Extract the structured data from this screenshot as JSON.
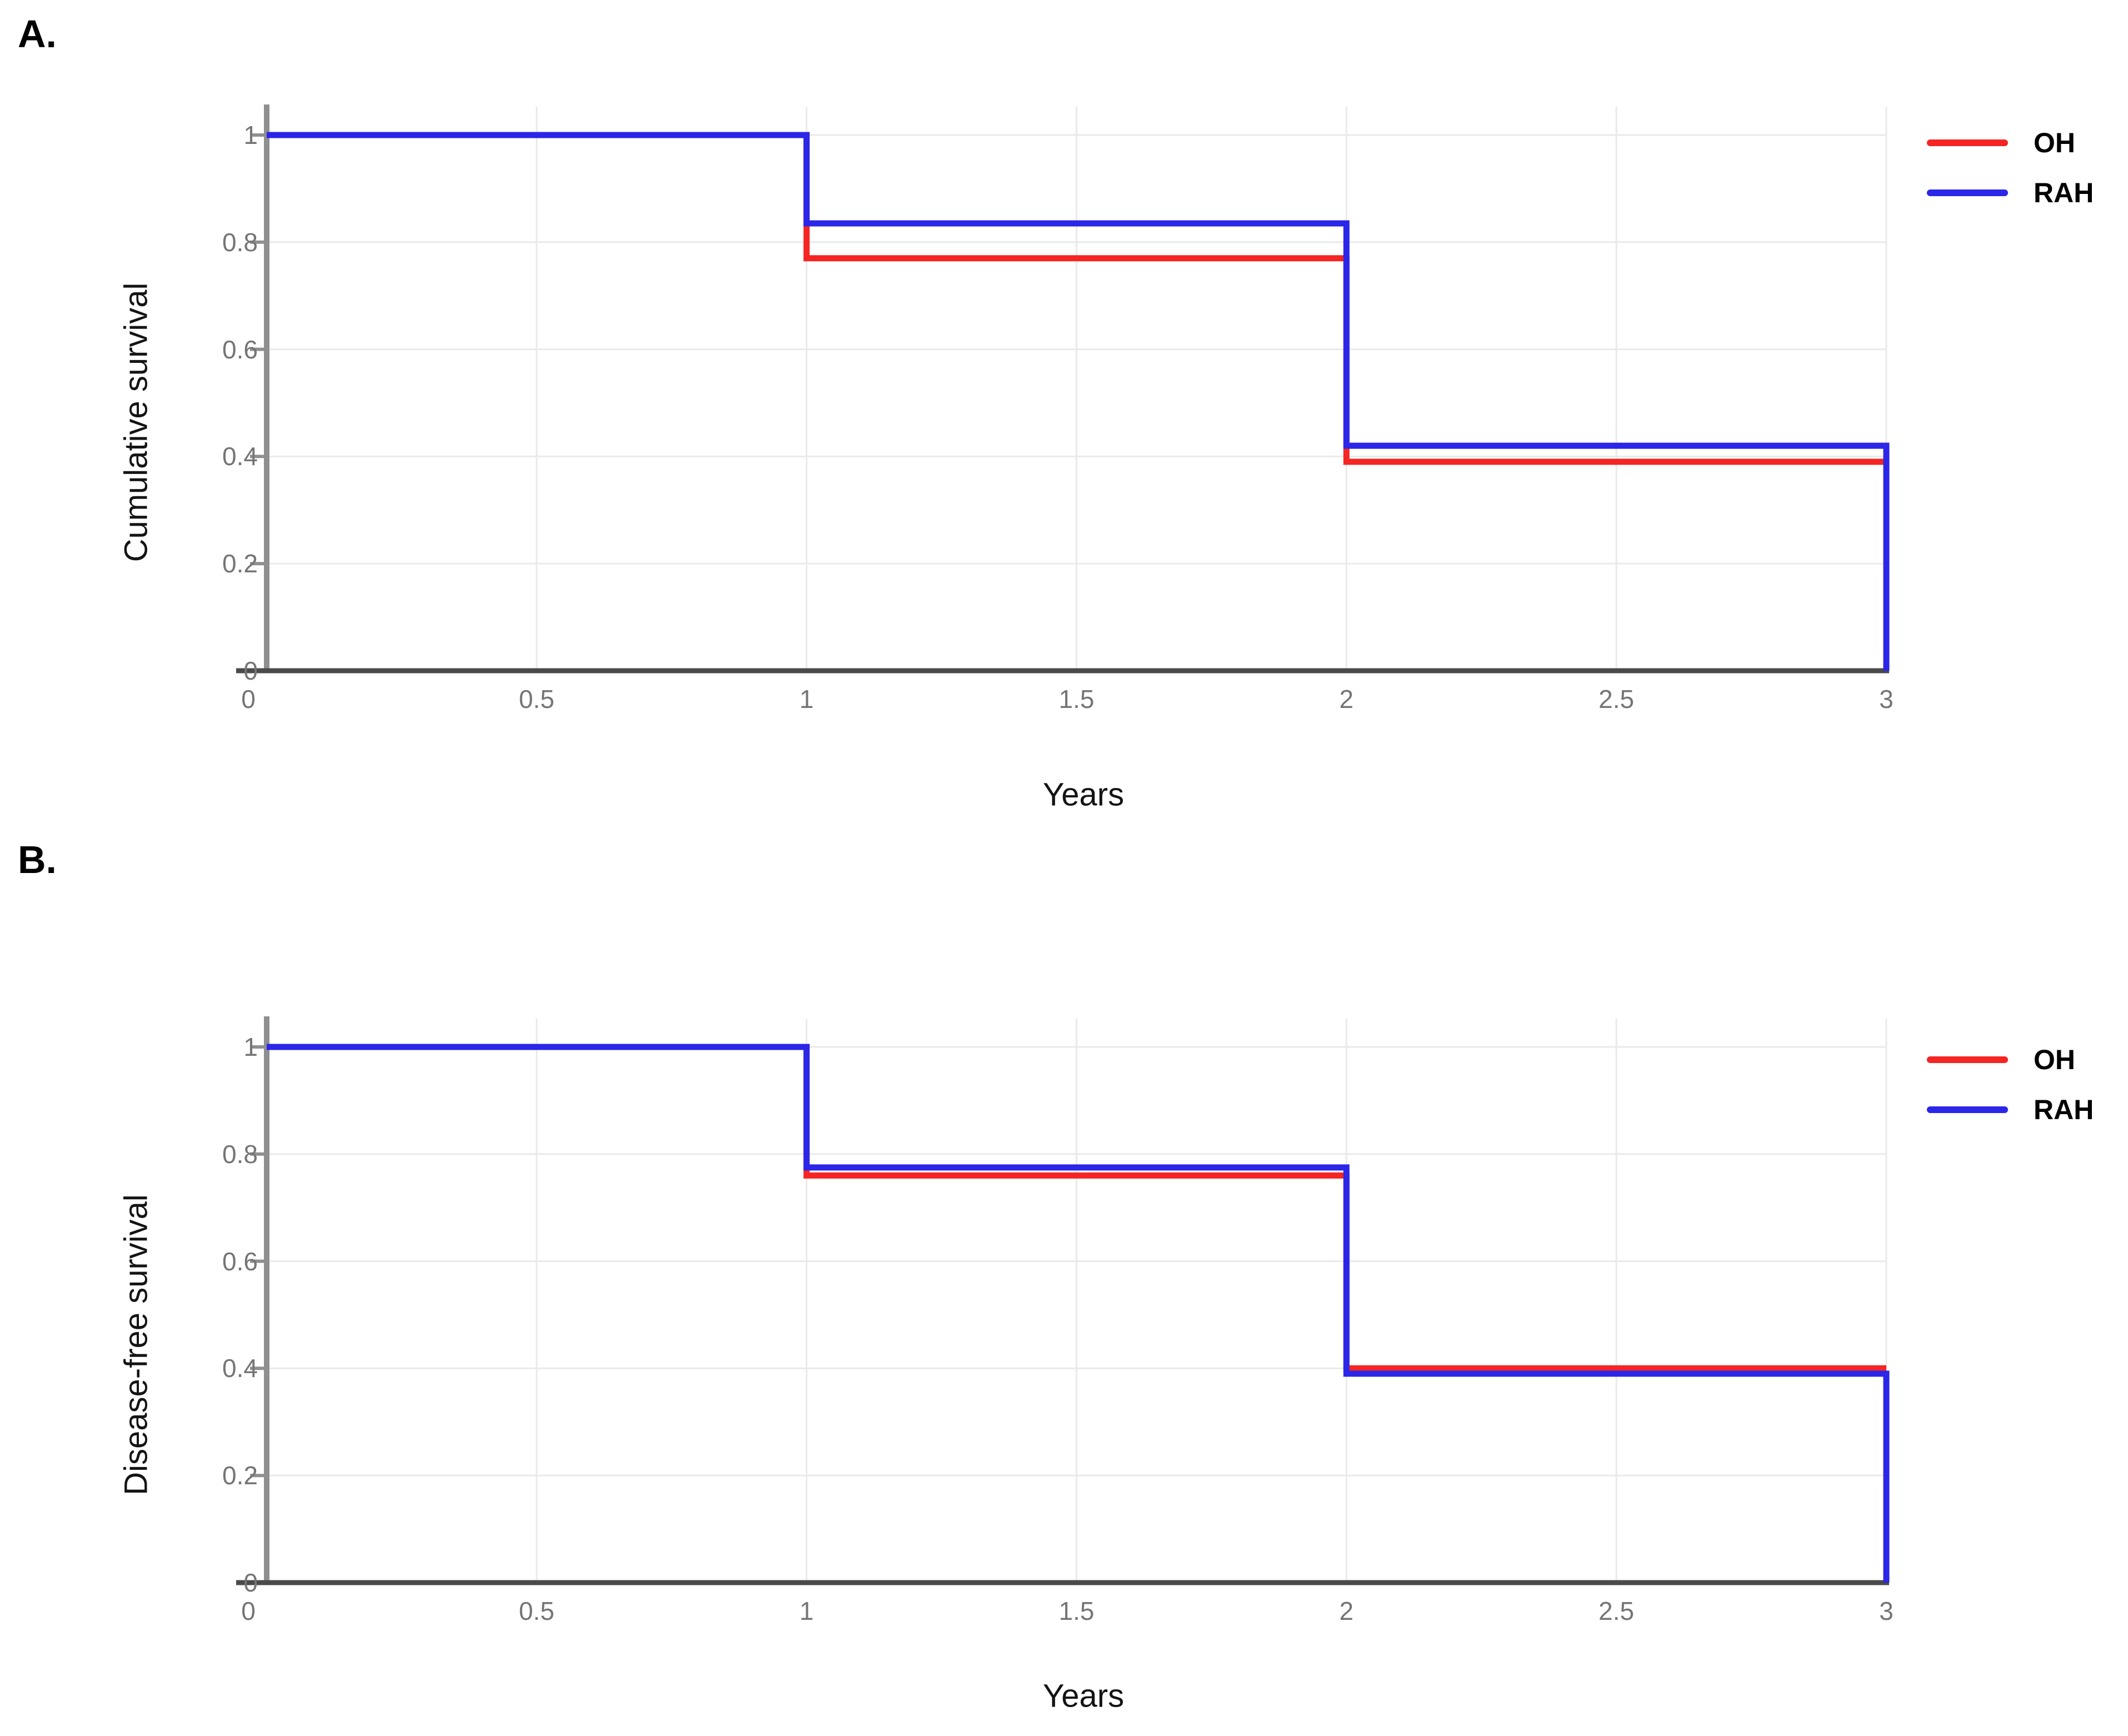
{
  "colors": {
    "oh": "#F42522",
    "rah": "#2B26E8",
    "grid": "#EAEAEA",
    "x_axis": "#4A4A4A",
    "y_axis": "#8F8F8F",
    "tick_text": "#757575",
    "title_text": "#141414"
  },
  "chart_data": [
    {
      "type": "line",
      "step": true,
      "panel_label": "A.",
      "title": "",
      "xlabel": "Years",
      "ylabel": "Cumulative survival",
      "xlim": [
        0,
        3
      ],
      "ylim": [
        0,
        1
      ],
      "xticks": [
        "0",
        "0.5",
        "1",
        "1.5",
        "2",
        "2.5",
        "3"
      ],
      "yticks": [
        "0",
        "0.2",
        "0.4",
        "0.6",
        "0.8",
        "1"
      ],
      "grid": true,
      "legend_position": "top-right",
      "legend_entries": [
        "OH",
        "RAH"
      ],
      "series": [
        {
          "name": "OH",
          "color": "#F42522",
          "x": [
            0,
            1,
            1,
            2,
            2,
            3
          ],
          "y": [
            1,
            1,
            0.77,
            0.77,
            0.39,
            0.39
          ]
        },
        {
          "name": "RAH",
          "color": "#2B26E8",
          "x": [
            0,
            1,
            1,
            2,
            2,
            3,
            3
          ],
          "y": [
            1,
            1,
            0.835,
            0.835,
            0.42,
            0.42,
            0
          ]
        }
      ]
    },
    {
      "type": "line",
      "step": true,
      "panel_label": "B.",
      "title": "",
      "xlabel": "Years",
      "ylabel": "Disease-free survival",
      "xlim": [
        0,
        3
      ],
      "ylim": [
        0,
        1
      ],
      "xticks": [
        "0",
        "0.5",
        "1",
        "1.5",
        "2",
        "2.5",
        "3"
      ],
      "yticks": [
        "0",
        "0.2",
        "0.4",
        "0.6",
        "0.8",
        "1"
      ],
      "grid": true,
      "legend_position": "top-right",
      "legend_entries": [
        "OH",
        "RAH"
      ],
      "series": [
        {
          "name": "OH",
          "color": "#F42522",
          "x": [
            0,
            1,
            1,
            2,
            2,
            3
          ],
          "y": [
            1,
            1,
            0.76,
            0.76,
            0.4,
            0.4
          ]
        },
        {
          "name": "RAH",
          "color": "#2B26E8",
          "x": [
            0,
            1,
            1,
            2,
            2,
            3,
            3
          ],
          "y": [
            1,
            1,
            0.775,
            0.775,
            0.39,
            0.39,
            0
          ]
        }
      ]
    }
  ]
}
